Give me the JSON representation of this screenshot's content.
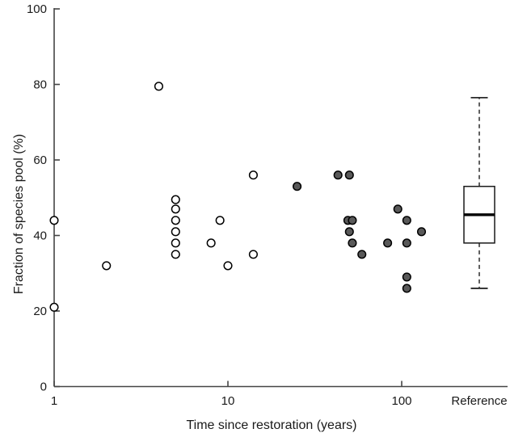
{
  "figure": {
    "background": "#ffffff",
    "axis_color": "#454545",
    "text_color": "#1a1a1a",
    "open_marker_fill": "#ffffff",
    "filled_marker_fill": "#595959",
    "marker_stroke": "#000000"
  },
  "chart_data": {
    "type": "scatter",
    "title": "",
    "xlabel": "Time since restoration (years)",
    "ylabel": "Fraction of species pool (%)",
    "x_scale": "log10",
    "xlim": [
      1,
      200
    ],
    "ylim": [
      0,
      100
    ],
    "x_ticks": [
      1,
      10,
      100
    ],
    "x_tick_labels": [
      "1",
      "10",
      "100"
    ],
    "y_ticks": [
      0,
      20,
      40,
      60,
      80,
      100
    ],
    "y_tick_labels": [
      "0",
      "20",
      "40",
      "60",
      "80",
      "100"
    ],
    "grid": false,
    "legend": "none",
    "series": [
      {
        "name": "restored-sites-open",
        "marker": "circle-open",
        "points": [
          [
            1,
            44
          ],
          [
            1,
            21
          ],
          [
            2,
            32
          ],
          [
            4,
            79.5
          ],
          [
            5,
            49.5
          ],
          [
            5,
            47
          ],
          [
            5,
            44
          ],
          [
            5,
            41
          ],
          [
            5,
            38
          ],
          [
            5,
            35
          ],
          [
            8,
            38
          ],
          [
            9,
            44
          ],
          [
            10,
            32
          ],
          [
            14,
            56
          ],
          [
            14,
            35
          ]
        ]
      },
      {
        "name": "restored-sites-filled",
        "marker": "circle-filled",
        "points": [
          [
            25,
            53
          ],
          [
            43,
            56
          ],
          [
            50,
            56
          ],
          [
            49,
            44
          ],
          [
            52,
            44
          ],
          [
            50,
            41
          ],
          [
            52,
            38
          ],
          [
            59,
            35
          ],
          [
            83,
            38
          ],
          [
            95,
            47
          ],
          [
            107,
            44
          ],
          [
            107,
            38
          ],
          [
            107,
            29
          ],
          [
            107,
            26
          ],
          [
            130,
            41
          ]
        ]
      }
    ],
    "reference_boxplot": {
      "label": "Reference",
      "whisker_low": 26,
      "q1": 38,
      "median": 45.5,
      "q3": 53,
      "whisker_high": 76.5
    }
  },
  "labels": {
    "x_axis_title": "Time since restoration (years)",
    "y_axis_title": "Fraction of species pool (%)",
    "reference_category": "Reference"
  }
}
